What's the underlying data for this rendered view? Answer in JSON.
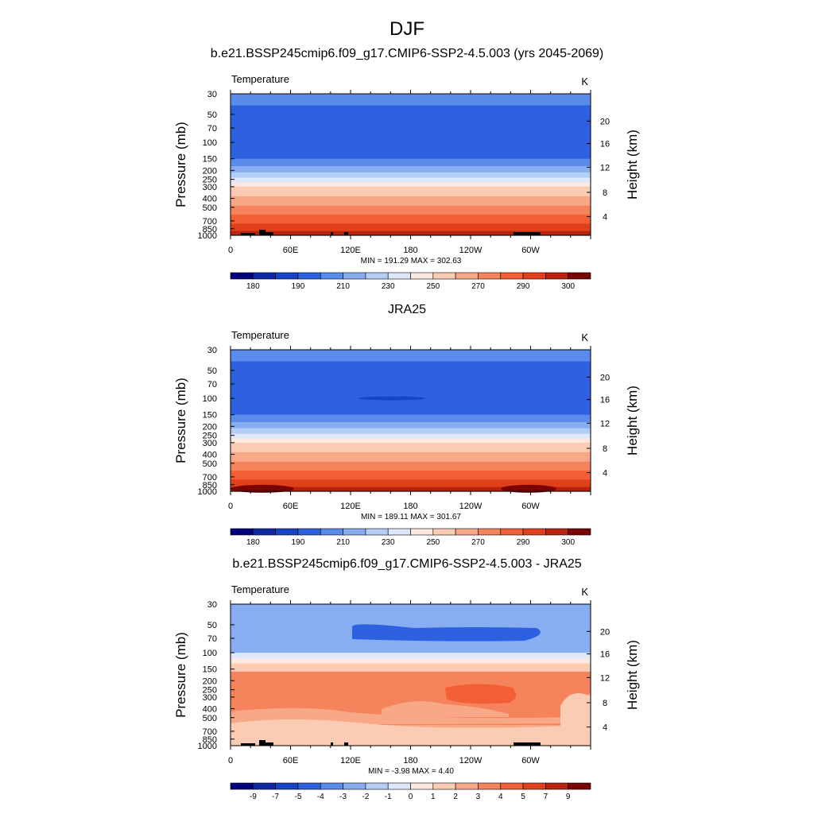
{
  "figure": {
    "season_title": "DJF"
  },
  "palettes": {
    "absolute": [
      "#00007f",
      "#0c2aa6",
      "#1644c4",
      "#2e61e0",
      "#5a8cec",
      "#88aef2",
      "#b4cdf7",
      "#dde8fb",
      "#fde9dd",
      "#fbcbb4",
      "#f8a887",
      "#f5835c",
      "#f25f34",
      "#e0401a",
      "#b8230d",
      "#7a0403"
    ],
    "difference": [
      "#00007f",
      "#0c2aa6",
      "#1644c4",
      "#2e61e0",
      "#5a8cec",
      "#88aef2",
      "#b4cdf7",
      "#dde8fb",
      "#fde9dd",
      "#fbcbb4",
      "#f8a887",
      "#f5835c",
      "#f25f34",
      "#e0401a",
      "#b8230d",
      "#7a0403"
    ]
  },
  "chart_data": [
    {
      "type": "heatmap",
      "title": "b.e21.BSSP245cmip6.f09_g17.CMIP6-SSP2-4.5.003 (yrs 2045-2069)",
      "variable_label": "Temperature",
      "units_label": "K",
      "ylabel": "Pressure (mb)",
      "ylabel_right": "Height (km)",
      "x_ticks": [
        "0",
        "60E",
        "120E",
        "180",
        "120W",
        "60W"
      ],
      "y_ticks": [
        "30",
        "50",
        "70",
        "100",
        "150",
        "200",
        "250",
        "300",
        "400",
        "500",
        "700",
        "850",
        "1000"
      ],
      "y_ticks_right": [
        "20",
        "16",
        "12",
        "8",
        "4"
      ],
      "stats_text": "MIN = 191.29  MAX = 302.63",
      "colorbar_labels": [
        "180",
        "190",
        "210",
        "230",
        "250",
        "270",
        "290",
        "300"
      ],
      "min": 191.29,
      "max": 302.63,
      "ylim": [
        1000,
        30
      ],
      "profile": [
        [
          30,
          4
        ],
        [
          40,
          3
        ],
        [
          70,
          3
        ],
        [
          120,
          3
        ],
        [
          150,
          4
        ],
        [
          180,
          5
        ],
        [
          210,
          6
        ],
        [
          240,
          7
        ],
        [
          270,
          8
        ],
        [
          300,
          9
        ],
        [
          380,
          10
        ],
        [
          480,
          11
        ],
        [
          600,
          12
        ],
        [
          750,
          13
        ],
        [
          900,
          14
        ],
        [
          1000,
          15
        ]
      ],
      "topography": true
    },
    {
      "type": "heatmap",
      "title": "JRA25",
      "variable_label": "Temperature",
      "units_label": "K",
      "ylabel": "Pressure (mb)",
      "ylabel_right": "Height (km)",
      "x_ticks": [
        "0",
        "60E",
        "120E",
        "180",
        "120W",
        "60W"
      ],
      "y_ticks": [
        "30",
        "50",
        "70",
        "100",
        "150",
        "200",
        "250",
        "300",
        "400",
        "500",
        "700",
        "850",
        "1000"
      ],
      "y_ticks_right": [
        "20",
        "16",
        "12",
        "8",
        "4"
      ],
      "stats_text": "MIN = 189.11  MAX = 301.67",
      "colorbar_labels": [
        "180",
        "190",
        "210",
        "230",
        "250",
        "270",
        "290",
        "300"
      ],
      "min": 189.11,
      "max": 301.67,
      "ylim": [
        1000,
        30
      ],
      "profile": [
        [
          30,
          4
        ],
        [
          40,
          3
        ],
        [
          70,
          3
        ],
        [
          120,
          3
        ],
        [
          150,
          4
        ],
        [
          180,
          5
        ],
        [
          210,
          6
        ],
        [
          240,
          7
        ],
        [
          270,
          8
        ],
        [
          300,
          9
        ],
        [
          380,
          10
        ],
        [
          480,
          11
        ],
        [
          600,
          12
        ],
        [
          750,
          13
        ],
        [
          900,
          14
        ],
        [
          1000,
          15
        ]
      ],
      "topography": false
    },
    {
      "type": "heatmap",
      "title": "b.e21.BSSP245cmip6.f09_g17.CMIP6-SSP2-4.5.003 - JRA25",
      "variable_label": "Temperature",
      "units_label": "K",
      "ylabel": "Pressure (mb)",
      "ylabel_right": "Height (km)",
      "x_ticks": [
        "0",
        "60E",
        "120E",
        "180",
        "120W",
        "60W"
      ],
      "y_ticks": [
        "30",
        "50",
        "70",
        "100",
        "150",
        "200",
        "250",
        "300",
        "400",
        "500",
        "700",
        "850",
        "1000"
      ],
      "y_ticks_right": [
        "20",
        "16",
        "12",
        "8",
        "4"
      ],
      "stats_text": "MIN = -3.98  MAX =  4.40",
      "colorbar_labels": [
        "-9",
        "-7",
        "-5",
        "-4",
        "-3",
        "-2",
        "-1",
        "0",
        "1",
        "2",
        "3",
        "4",
        "5",
        "7",
        "9"
      ],
      "min": -3.98,
      "max": 4.4,
      "ylim": [
        1000,
        30
      ],
      "profile": [
        [
          30,
          5
        ],
        [
          45,
          5
        ],
        [
          75,
          5
        ],
        [
          100,
          7
        ],
        [
          115,
          8
        ],
        [
          130,
          9
        ],
        [
          160,
          11
        ],
        [
          400,
          11
        ],
        [
          600,
          10
        ],
        [
          800,
          9
        ],
        [
          1000,
          9
        ]
      ],
      "topography": true
    }
  ]
}
